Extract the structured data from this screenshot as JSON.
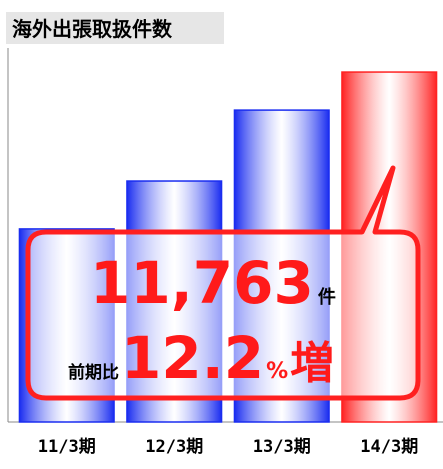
{
  "chart_data": {
    "type": "bar",
    "title": "海外出張取扱件数",
    "categories": [
      "11/3期",
      "12/3期",
      "13/3期",
      "14/3期"
    ],
    "values": [
      6490,
      8100,
      10484,
      11763
    ],
    "value_labels": [
      null,
      null,
      null,
      "11,763"
    ],
    "colors": [
      "#1a2df0",
      "#1a2df0",
      "#1a2df0",
      "#ff2222"
    ],
    "ylim": [
      0,
      12000
    ],
    "callout": {
      "unit": "件",
      "prefix": "前期比",
      "change": 12.2,
      "change_unit": "%",
      "suffix": "増"
    }
  }
}
